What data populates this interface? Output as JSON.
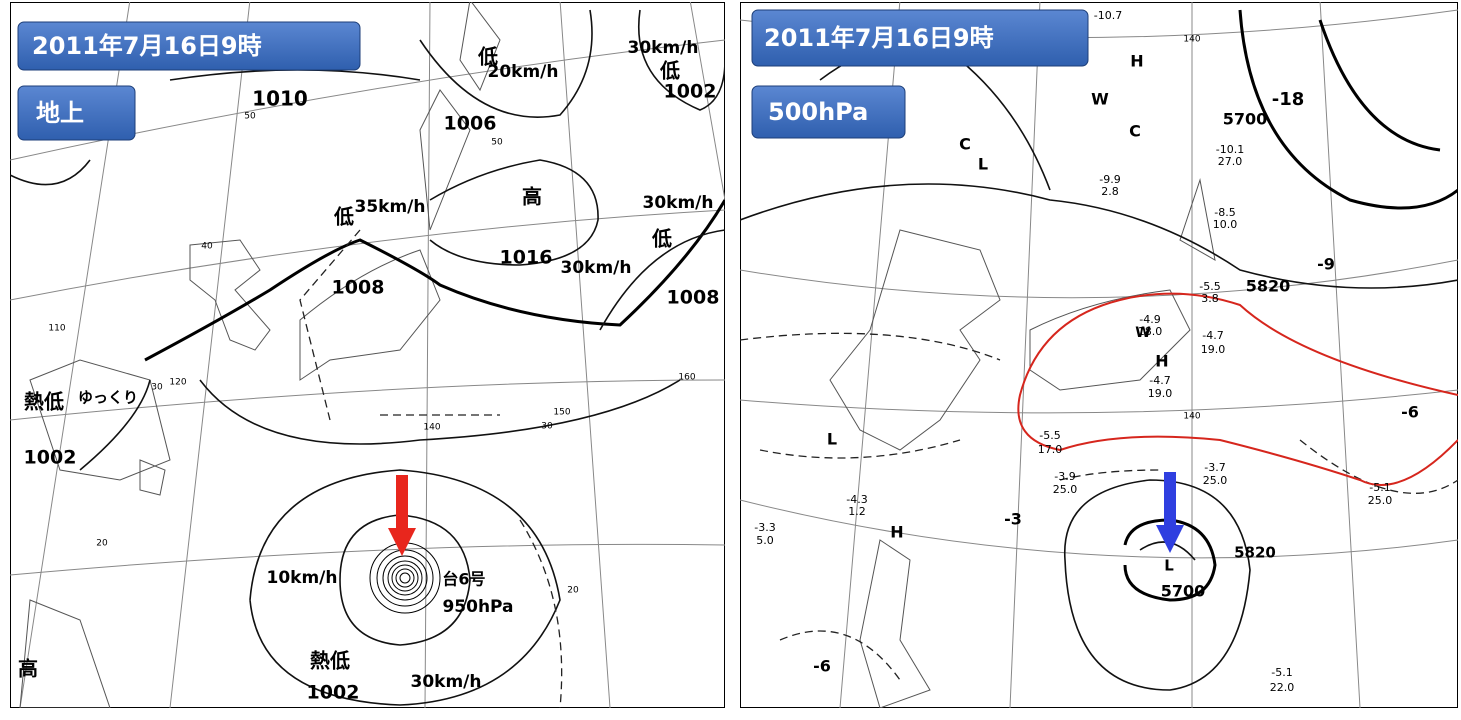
{
  "left_panel": {
    "date": "2011年7月16日9時",
    "level": "地上",
    "labels": [
      "1010",
      "低",
      "20km/h",
      "1006",
      "30km/h",
      "低",
      "1002",
      "低",
      "35km/h",
      "高",
      "1016",
      "30km/h",
      "30km/h",
      "低",
      "1008",
      "1008",
      "熱低",
      "ゆっくり",
      "1002",
      "10km/h",
      "台6号",
      "950hPa",
      "熱低",
      "1002",
      "30km/h",
      "高",
      "50",
      "50",
      "40",
      "30",
      "20",
      "110",
      "120",
      "140",
      "150",
      "160",
      "30",
      "20"
    ]
  },
  "right_panel": {
    "date": "2011年7月16日9時",
    "level": "500hPa",
    "labels": [
      "H",
      "W",
      "C",
      "C",
      "L",
      "5700",
      "-18",
      "-9",
      "5820",
      "W",
      "H",
      "-6",
      "-3",
      "5820",
      "5700",
      "L",
      "H",
      "L",
      "-6",
      "-10.7",
      "-10.1",
      "27.0",
      "-9.9",
      "2.8",
      "-8.5",
      "10.0",
      "-5.5",
      "3.8",
      "-4.9",
      "18.0",
      "-4.7",
      "19.0",
      "-4.7",
      "19.0",
      "-5.5",
      "17.0",
      "-3.9",
      "25.0",
      "-3.7",
      "25.0",
      "-5.1",
      "25.0",
      "-5.1",
      "22.0",
      "-3.3",
      "5.0",
      "-4.3",
      "1.2",
      "140",
      "140"
    ]
  }
}
